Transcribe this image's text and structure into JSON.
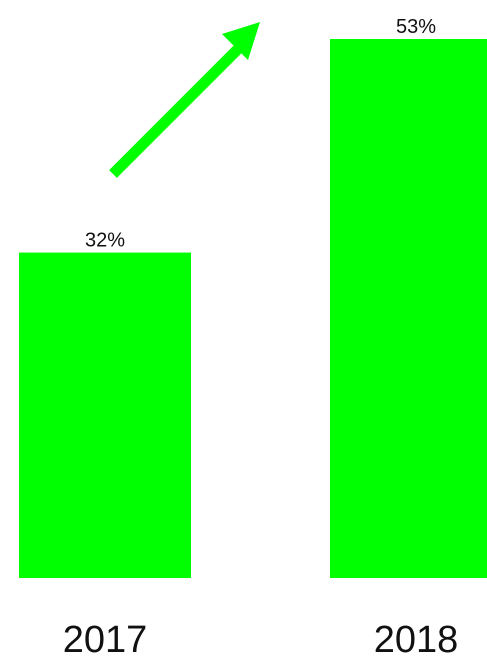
{
  "chart_data": {
    "type": "bar",
    "categories": [
      "2017",
      "2018"
    ],
    "values": [
      32,
      53
    ],
    "value_labels": [
      "32%",
      "53%"
    ],
    "ylim": [
      0,
      53
    ],
    "grid": false,
    "title": "",
    "xlabel": "",
    "ylabel": ""
  },
  "colors": {
    "bar": "#00ff00",
    "arrow": "#00ff00",
    "text": "#111111",
    "background": "#ffffff"
  },
  "decorations": {
    "trend_arrow": "up-right-arrow-icon"
  }
}
